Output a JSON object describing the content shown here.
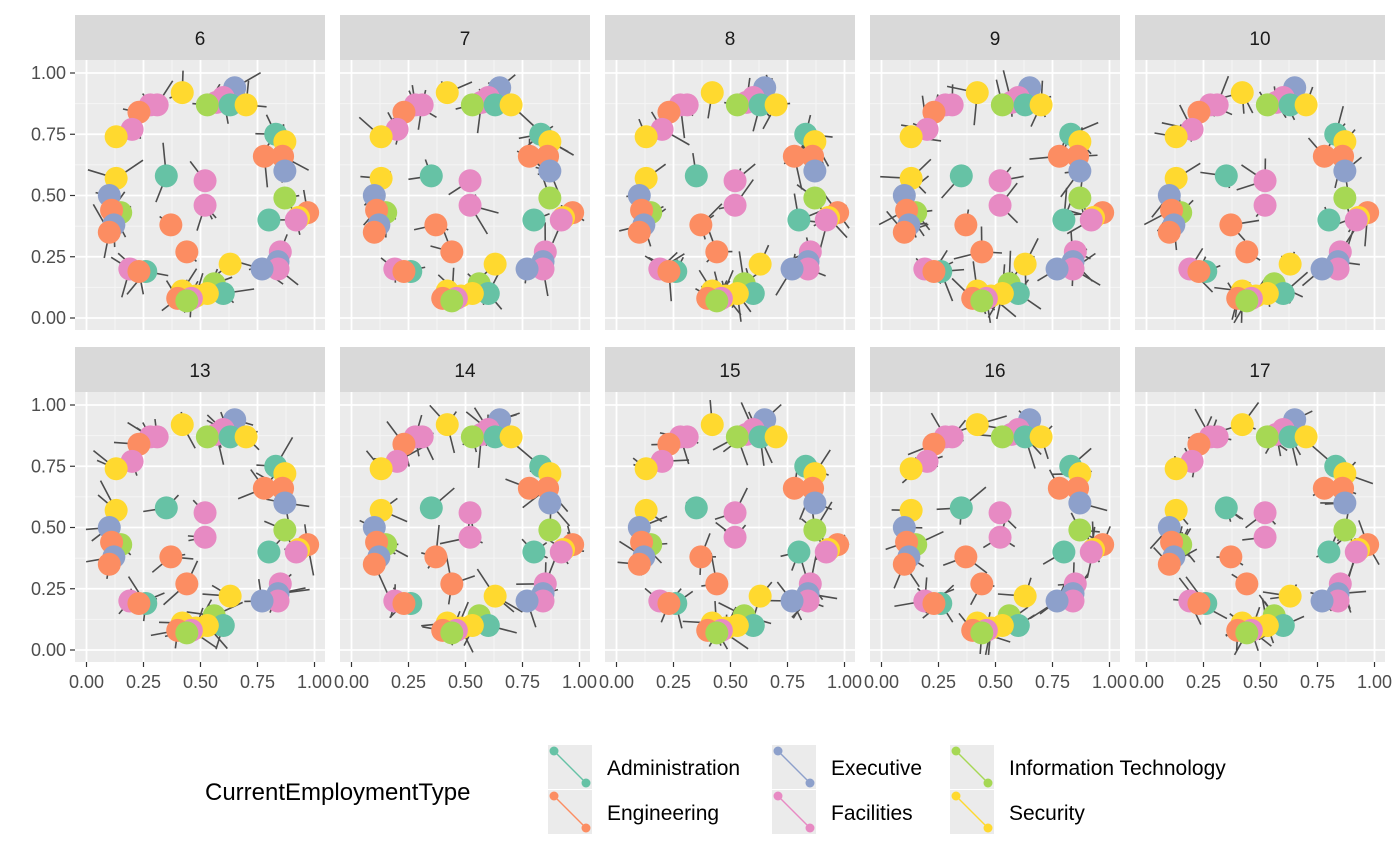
{
  "chart_data": {
    "type": "scatter",
    "subtype": "faceted network graph (points = nodes, grey segments = edges)",
    "facets": [
      "6",
      "7",
      "8",
      "9",
      "10",
      "13",
      "14",
      "15",
      "16",
      "17"
    ],
    "facet_layout": {
      "rows": 2,
      "cols": 5
    },
    "xlim": [
      0,
      1
    ],
    "ylim": [
      0,
      1
    ],
    "x_ticks": [
      "0.00",
      "0.25",
      "0.50",
      "0.75",
      "1.00"
    ],
    "y_ticks": [
      "0.00",
      "0.25",
      "0.50",
      "0.75",
      "1.00"
    ],
    "xlabel": "",
    "ylabel": "",
    "grid": true,
    "background": "#ebebeb",
    "strip_fill": "#d9d9d9",
    "edge_color": "#4d4d4d",
    "legend": {
      "title": "CurrentEmploymentType",
      "position": "bottom",
      "entries": [
        {
          "name": "Administration",
          "color": "#66c2a5"
        },
        {
          "name": "Engineering",
          "color": "#fc8d62"
        },
        {
          "name": "Executive",
          "color": "#8da0cb"
        },
        {
          "name": "Facilities",
          "color": "#e78ac3"
        },
        {
          "name": "Information Technology",
          "color": "#a6d854"
        },
        {
          "name": "Security",
          "color": "#ffd92f"
        }
      ]
    },
    "nodes": [
      {
        "x": 0.42,
        "y": 0.92,
        "type": "Security"
      },
      {
        "x": 0.65,
        "y": 0.94,
        "type": "Executive"
      },
      {
        "x": 0.6,
        "y": 0.9,
        "type": "Facilities"
      },
      {
        "x": 0.57,
        "y": 0.88,
        "type": "Facilities"
      },
      {
        "x": 0.53,
        "y": 0.87,
        "type": "Information Technology"
      },
      {
        "x": 0.63,
        "y": 0.87,
        "type": "Administration"
      },
      {
        "x": 0.7,
        "y": 0.87,
        "type": "Security"
      },
      {
        "x": 0.31,
        "y": 0.87,
        "type": "Facilities"
      },
      {
        "x": 0.28,
        "y": 0.87,
        "type": "Facilities"
      },
      {
        "x": 0.23,
        "y": 0.84,
        "type": "Engineering"
      },
      {
        "x": 0.2,
        "y": 0.77,
        "type": "Facilities"
      },
      {
        "x": 0.13,
        "y": 0.74,
        "type": "Security"
      },
      {
        "x": 0.83,
        "y": 0.75,
        "type": "Administration"
      },
      {
        "x": 0.87,
        "y": 0.72,
        "type": "Security"
      },
      {
        "x": 0.78,
        "y": 0.66,
        "type": "Engineering"
      },
      {
        "x": 0.86,
        "y": 0.66,
        "type": "Engineering"
      },
      {
        "x": 0.87,
        "y": 0.6,
        "type": "Executive"
      },
      {
        "x": 0.35,
        "y": 0.58,
        "type": "Administration"
      },
      {
        "x": 0.52,
        "y": 0.56,
        "type": "Facilities"
      },
      {
        "x": 0.13,
        "y": 0.57,
        "type": "Security"
      },
      {
        "x": 0.1,
        "y": 0.5,
        "type": "Executive"
      },
      {
        "x": 0.87,
        "y": 0.49,
        "type": "Information Technology"
      },
      {
        "x": 0.52,
        "y": 0.46,
        "type": "Facilities"
      },
      {
        "x": 0.15,
        "y": 0.43,
        "type": "Information Technology"
      },
      {
        "x": 0.11,
        "y": 0.44,
        "type": "Engineering"
      },
      {
        "x": 0.97,
        "y": 0.43,
        "type": "Engineering"
      },
      {
        "x": 0.93,
        "y": 0.41,
        "type": "Security"
      },
      {
        "x": 0.92,
        "y": 0.4,
        "type": "Facilities"
      },
      {
        "x": 0.8,
        "y": 0.4,
        "type": "Administration"
      },
      {
        "x": 0.37,
        "y": 0.38,
        "type": "Engineering"
      },
      {
        "x": 0.12,
        "y": 0.38,
        "type": "Executive"
      },
      {
        "x": 0.1,
        "y": 0.35,
        "type": "Engineering"
      },
      {
        "x": 0.44,
        "y": 0.27,
        "type": "Engineering"
      },
      {
        "x": 0.85,
        "y": 0.27,
        "type": "Facilities"
      },
      {
        "x": 0.63,
        "y": 0.22,
        "type": "Security"
      },
      {
        "x": 0.84,
        "y": 0.23,
        "type": "Executive"
      },
      {
        "x": 0.84,
        "y": 0.2,
        "type": "Facilities"
      },
      {
        "x": 0.77,
        "y": 0.2,
        "type": "Executive"
      },
      {
        "x": 0.19,
        "y": 0.2,
        "type": "Facilities"
      },
      {
        "x": 0.26,
        "y": 0.19,
        "type": "Administration"
      },
      {
        "x": 0.23,
        "y": 0.19,
        "type": "Engineering"
      },
      {
        "x": 0.56,
        "y": 0.14,
        "type": "Information Technology"
      },
      {
        "x": 0.42,
        "y": 0.11,
        "type": "Security"
      },
      {
        "x": 0.48,
        "y": 0.09,
        "type": "Security"
      },
      {
        "x": 0.6,
        "y": 0.1,
        "type": "Administration"
      },
      {
        "x": 0.53,
        "y": 0.1,
        "type": "Security"
      },
      {
        "x": 0.46,
        "y": 0.08,
        "type": "Facilities"
      },
      {
        "x": 0.4,
        "y": 0.08,
        "type": "Engineering"
      },
      {
        "x": 0.44,
        "y": 0.07,
        "type": "Information Technology"
      }
    ]
  }
}
